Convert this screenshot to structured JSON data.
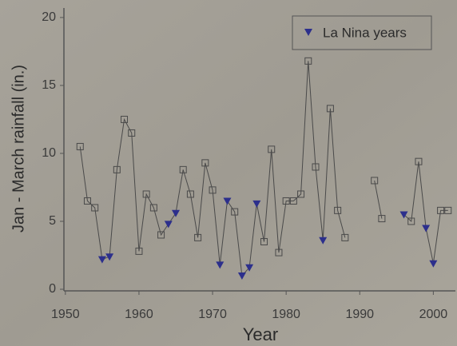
{
  "chart_data": {
    "type": "line",
    "x_label": "Year",
    "y_label": "Jan - March rainfall (in.)",
    "x": [
      1952,
      1953,
      1954,
      1955,
      1956,
      1957,
      1958,
      1959,
      1960,
      1961,
      1962,
      1963,
      1964,
      1965,
      1966,
      1967,
      1968,
      1969,
      1970,
      1971,
      1972,
      1973,
      1974,
      1975,
      1976,
      1977,
      1978,
      1979,
      1980,
      1981,
      1982,
      1983,
      1984,
      1985,
      1986,
      1987,
      1988,
      1990,
      1992,
      1993,
      1995,
      1996,
      1997,
      1998,
      1999,
      2000,
      2001,
      2002
    ],
    "values": [
      10.5,
      6.5,
      6.0,
      2.2,
      2.4,
      8.8,
      12.5,
      11.5,
      2.8,
      7.0,
      6.0,
      4.0,
      4.8,
      5.6,
      8.8,
      7.0,
      3.8,
      9.3,
      7.3,
      1.8,
      6.5,
      5.7,
      1.0,
      1.6,
      6.3,
      3.5,
      10.3,
      2.7,
      6.5,
      6.5,
      7.0,
      16.8,
      9.0,
      3.6,
      13.3,
      5.8,
      3.8,
      null,
      8.0,
      5.2,
      null,
      5.5,
      5.0,
      9.4,
      4.5,
      1.9,
      5.8,
      5.8
    ],
    "la_nina": [
      false,
      false,
      false,
      true,
      true,
      false,
      false,
      false,
      false,
      false,
      false,
      false,
      true,
      true,
      false,
      false,
      false,
      false,
      false,
      true,
      true,
      false,
      true,
      true,
      true,
      false,
      false,
      false,
      false,
      false,
      false,
      false,
      false,
      true,
      false,
      false,
      false,
      false,
      false,
      false,
      false,
      true,
      false,
      false,
      true,
      true,
      false,
      false
    ],
    "legend_label": "La Nina years",
    "line_color": "#4a4a4a",
    "la_nina_color": "#2c2f8c",
    "xlim": [
      1949.8,
      2003
    ],
    "ylim": [
      0,
      20.7
    ],
    "xticks": [
      1950,
      1960,
      1970,
      1980,
      1990,
      2000
    ],
    "yticks": [
      0,
      5,
      10,
      15,
      20
    ]
  }
}
